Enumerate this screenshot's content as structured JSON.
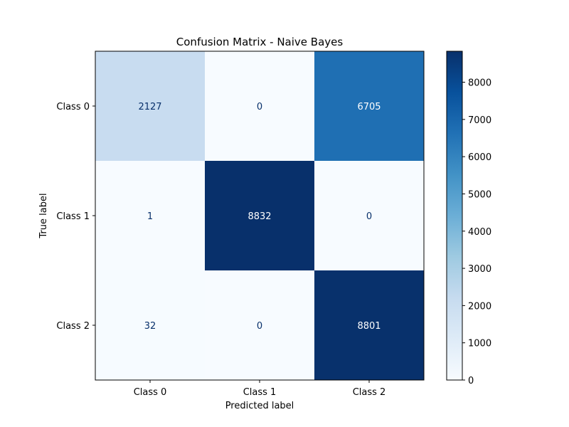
{
  "chart_data": {
    "type": "heatmap",
    "title": "Confusion Matrix - Naive Bayes",
    "xlabel": "Predicted label",
    "ylabel": "True label",
    "x_categories": [
      "Class 0",
      "Class 1",
      "Class 2"
    ],
    "y_categories": [
      "Class 0",
      "Class 1",
      "Class 2"
    ],
    "values": [
      [
        2127,
        0,
        6705
      ],
      [
        1,
        8832,
        0
      ],
      [
        32,
        0,
        8801
      ]
    ],
    "colorscale": "Blues",
    "colorbar": {
      "range": [
        0,
        8832
      ],
      "ticks": [
        0,
        1000,
        2000,
        3000,
        4000,
        5000,
        6000,
        7000,
        8000
      ]
    }
  }
}
